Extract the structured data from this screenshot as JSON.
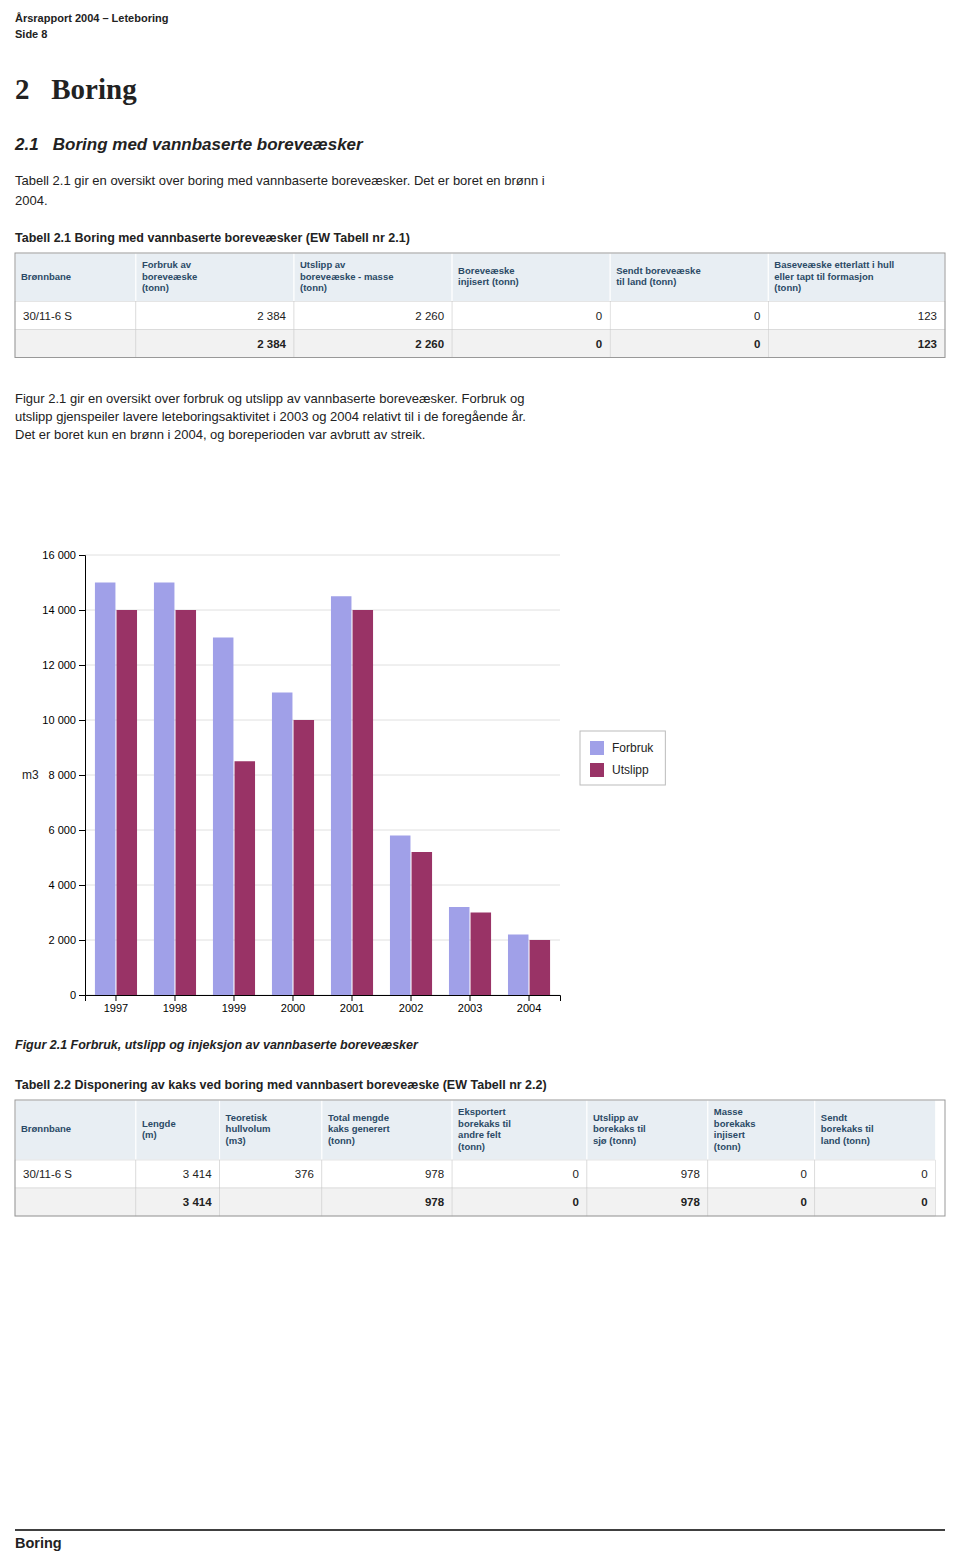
{
  "page": {
    "header_lines": [
      "Årsrapport 2004 – Leteboring",
      "Side 8"
    ],
    "chapter_title": "2   Boring",
    "section_title": "2.1   Boring med vannbaserte boreveæsker",
    "section_text": "Tabell 2.1 gir en oversikt over boring med vannbaserte boreveæsker. Det er boret en brønn i\n2004.",
    "figure_text": [
      "Figur 2.1 gir en oversikt over forbruk og utslipp av vannbaserte boreveæsker. Forbruk og",
      "utslipp gjenspeiler lavere leteboringsaktivitet i 2003 og 2004 relativt til i de foregående år.",
      "Det er boret kun en brønn i 2004, og boreperioden var avbrutt av streik."
    ],
    "figure_caption": "Figur 2.1 Forbruk, utslipp og injeksjon av vannbaserte boreveæsker",
    "footer_text": "Boring"
  },
  "tables": [
    {
      "title": "Tabell 2.1 Boring med vannbaserte boreveæsker (EW Tabell nr 2.1)",
      "headers": [
        "Brønnbane",
        "Forbruk av\nboreveæske\n(tonn)",
        "Utslipp av\nboreveæske - masse\n(tonn)",
        "Boreveæske\ninjisert (tonn)",
        "Sendt boreveæske\ntil land (tonn)",
        "Baseveæske etterlatt i hull\neller tapt til formasjon\n(tonn)"
      ],
      "rows": [
        [
          "30/11-6 S",
          "2 384",
          "2 260",
          "0",
          "0",
          "123"
        ],
        [
          null,
          "2 384",
          "2 260",
          "0",
          "0",
          "123"
        ]
      ]
    },
    {
      "title": "Tabell 2.2 Disponering av kaks ved boring med vannbasert boreveæske (EW Tabell nr 2.2)",
      "headers": [
        "Brønnbane",
        "Lengde\n(m)",
        "Teoretisk\nhullvolum\n(m3)",
        "Total mengde\nkaks generert\n(tonn)",
        "Eksportert\nborekaks til\nandre felt\n(tonn)",
        "Utslipp av\nborekaks til\nsjø (tonn)",
        "Masse\nborekaks\ninjisert\n(tonn)",
        "Sendt\nborekaks til\nland (tonn)"
      ],
      "rows": [
        [
          "30/11-6 S",
          "3 414",
          "376",
          "978",
          "0",
          "978",
          "0",
          "0"
        ],
        [
          null,
          "3 414",
          null,
          "978",
          "0",
          "978",
          "0",
          "0"
        ]
      ]
    }
  ],
  "chart_data": {
    "type": "bar",
    "categories": [
      "1997",
      "1998",
      "1999",
      "2000",
      "2001",
      "2002",
      "2003",
      "2004"
    ],
    "series": [
      {
        "name": "Forbruk",
        "color": "#A0A0E8",
        "values": [
          15000,
          15000,
          13000,
          11000,
          14500,
          5800,
          3200,
          2200
        ]
      },
      {
        "name": "Utslipp",
        "color": "#993366",
        "values": [
          14000,
          14000,
          8500,
          10000,
          14000,
          5200,
          3000,
          2000
        ]
      }
    ],
    "ylabel": "m3",
    "ylim": [
      0,
      16000
    ],
    "yticks": [
      0,
      {
        "value": 2000,
        "label": "2 000"
      },
      {
        "value": 4000,
        "label": "4 000"
      },
      {
        "value": 6000,
        "label": "6 000"
      },
      {
        "value": 8000,
        "label": "8 000"
      },
      {
        "value": 10000,
        "label": "10 000"
      },
      {
        "value": 12000,
        "label": "12 000"
      },
      {
        "value": 14000,
        "label": "14 000"
      },
      {
        "value": 16000,
        "label": "16 000"
      }
    ],
    "grid": true,
    "legend": "right"
  }
}
